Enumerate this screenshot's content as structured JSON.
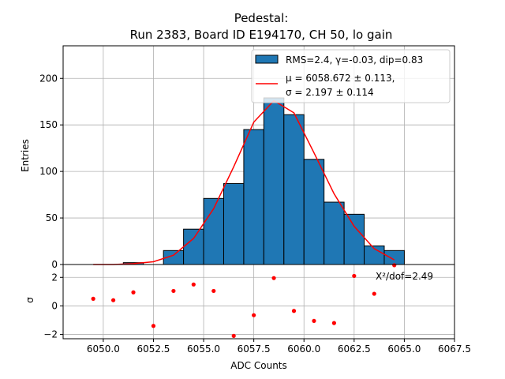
{
  "chart_data": {
    "type": "bar",
    "title": "Pedestal:",
    "subtitle": "Run 2383, Board ID E194170, CH 50, lo gain",
    "xlabel": "ADC Counts",
    "ylabel_top": "Entries",
    "ylabel_bottom": "σ",
    "xlim": [
      6048.0,
      6067.5
    ],
    "ylim_top": [
      0,
      235
    ],
    "ylim_bottom": [
      -2.3,
      2.9
    ],
    "x_ticks": [
      6050.0,
      6052.5,
      6055.0,
      6057.5,
      6060.0,
      6062.5,
      6065.0,
      6067.5
    ],
    "x_tick_labels": [
      "6050.0",
      "6052.5",
      "6055.0",
      "6057.5",
      "6060.0",
      "6062.5",
      "6065.0",
      "6067.5"
    ],
    "y_ticks_top": [
      0,
      50,
      100,
      150,
      200
    ],
    "y_tick_labels_top": [
      "0",
      "50",
      "100",
      "150",
      "200"
    ],
    "y_ticks_bottom": [
      -2,
      0,
      2
    ],
    "y_tick_labels_bottom": [
      "−2",
      "0",
      "2"
    ],
    "grid": true,
    "legend_position": "top-right",
    "bar_color": "#1f77b4",
    "fit_color": "#ff0000",
    "residual_color": "#ff0000",
    "histogram": {
      "bin_edges": [
        6049,
        6050,
        6051,
        6052,
        6053,
        6054,
        6055,
        6056,
        6057,
        6058,
        6059,
        6060,
        6061,
        6062,
        6063,
        6064,
        6065
      ],
      "counts": [
        0,
        0,
        2,
        0,
        15,
        38,
        71,
        87,
        145,
        179,
        161,
        113,
        67,
        54,
        20,
        15
      ]
    },
    "fit_curve": {
      "x": [
        6049.5,
        6050.5,
        6051.5,
        6052.5,
        6053.5,
        6054.5,
        6055.5,
        6056.5,
        6057.5,
        6058.5,
        6059.5,
        6060.5,
        6061.5,
        6062.5,
        6063.5,
        6064.5
      ],
      "y": [
        0,
        0,
        1,
        3,
        10,
        28,
        60,
        105,
        153,
        176,
        163,
        120,
        76,
        41,
        17,
        5
      ]
    },
    "residuals": {
      "x": [
        6049.5,
        6050.5,
        6051.5,
        6052.5,
        6053.5,
        6054.5,
        6055.5,
        6056.5,
        6057.5,
        6058.5,
        6059.5,
        6060.5,
        6061.5,
        6062.5,
        6063.5,
        6064.5
      ],
      "y": [
        0.5,
        0.4,
        0.95,
        -1.4,
        1.05,
        1.5,
        1.05,
        -2.1,
        -0.65,
        1.95,
        -0.35,
        -1.05,
        -1.2,
        2.1,
        0.85,
        2.85
      ]
    },
    "legend": {
      "hist_label": "RMS=2.4, γ=-0.03, dip=0.83",
      "fit_label_line1": "μ = 6058.672 ± 0.113,",
      "fit_label_line2": "σ = 2.197 ± 0.114"
    },
    "chi2_annotation": "X²/dof=2.49"
  }
}
